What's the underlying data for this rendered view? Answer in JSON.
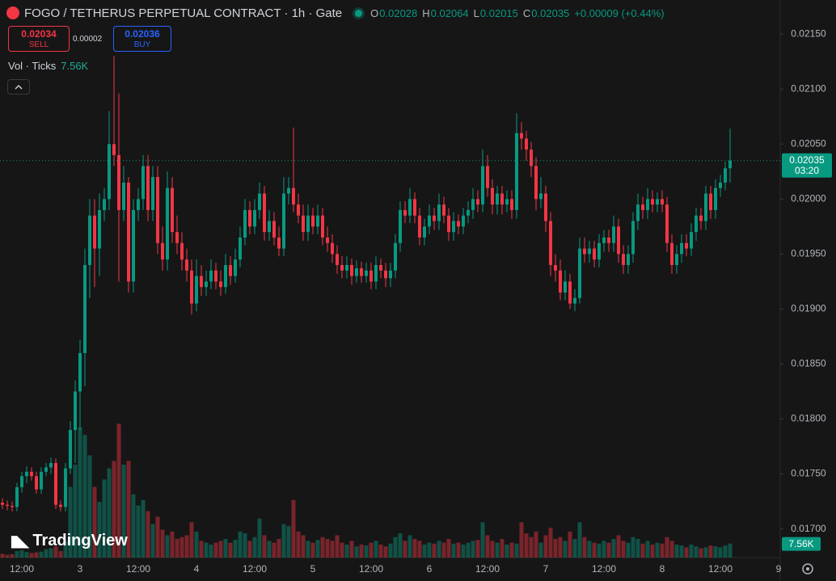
{
  "chart_data": {
    "type": "candlestick",
    "title": "FOGO / TETHERUS PERPETUAL CONTRACT · 1h · Gate",
    "ohlc_labels": [
      "O",
      "H",
      "L",
      "C"
    ],
    "change": "+0.00009 (+0.44%)",
    "countdown": "03:20",
    "up_color": "#089981",
    "down_color": "#f23645",
    "grid": false,
    "categories": [
      null,
      null,
      null,
      null,
      "12:00",
      null,
      null,
      null,
      null,
      null,
      null,
      null,
      null,
      null,
      null,
      null,
      "3",
      null,
      null,
      null,
      null,
      null,
      null,
      null,
      null,
      null,
      null,
      null,
      "12:00",
      null,
      null,
      null,
      null,
      null,
      null,
      null,
      null,
      null,
      null,
      null,
      "4",
      null,
      null,
      null,
      null,
      null,
      null,
      null,
      null,
      null,
      null,
      null,
      "12:00",
      null,
      null,
      null,
      null,
      null,
      null,
      null,
      null,
      null,
      null,
      null,
      "5",
      null,
      null,
      null,
      null,
      null,
      null,
      null,
      null,
      null,
      null,
      null,
      "12:00",
      null,
      null,
      null,
      null,
      null,
      null,
      null,
      null,
      null,
      null,
      null,
      "6",
      null,
      null,
      null,
      null,
      null,
      null,
      null,
      null,
      null,
      null,
      null,
      "12:00",
      null,
      null,
      null,
      null,
      null,
      null,
      null,
      null,
      null,
      null,
      null,
      "7",
      null,
      null,
      null,
      null,
      null,
      null,
      null,
      null,
      null,
      null,
      null,
      "12:00",
      null,
      null,
      null,
      null,
      null,
      null,
      null,
      null,
      null,
      null,
      null,
      "8",
      null,
      null,
      null,
      null,
      null,
      null,
      null,
      null,
      null,
      null,
      null,
      "12:00",
      null,
      null,
      null,
      null,
      null,
      null,
      null,
      null,
      null,
      null,
      null,
      "9"
    ],
    "series": [
      {
        "name": "FOGO / TETHERUS PERPETUAL CONTRACT",
        "open": [
          0.01724,
          0.01722,
          0.01721,
          0.0172,
          0.01738,
          0.01748,
          0.01752,
          0.01748,
          0.01736,
          0.01752,
          0.01756,
          0.0176,
          0.01722,
          0.0172,
          0.01755,
          0.0179,
          0.01825,
          0.0186,
          0.0194,
          0.01985,
          0.01955,
          0.0199,
          0.02,
          0.0205,
          0.0204,
          0.0199,
          0.02015,
          0.01925,
          0.0199,
          0.02,
          0.0203,
          0.0199,
          0.0202,
          0.0196,
          0.01945,
          0.0201,
          0.0197,
          0.0196,
          0.01945,
          0.01935,
          0.01905,
          0.0193,
          0.0192,
          0.01925,
          0.01935,
          0.01925,
          0.0192,
          0.0194,
          0.0193,
          0.01945,
          0.01965,
          0.0199,
          0.01975,
          0.0199,
          0.02005,
          0.0197,
          0.0198,
          0.01965,
          0.01955,
          0.02005,
          0.0201,
          0.01995,
          0.01985,
          0.0197,
          0.01985,
          0.01975,
          0.01985,
          0.01965,
          0.0196,
          0.0195,
          0.0194,
          0.01935,
          0.0194,
          0.0193,
          0.01937,
          0.0193,
          0.01935,
          0.01925,
          0.0194,
          0.01935,
          0.01928,
          0.01935,
          0.0196,
          0.0199,
          0.01985,
          0.02,
          0.01985,
          0.01965,
          0.01975,
          0.01985,
          0.0198,
          0.01995,
          0.01985,
          0.0197,
          0.0198,
          0.01975,
          0.01985,
          0.0199,
          0.02,
          0.01995,
          0.0203,
          0.0201,
          0.01995,
          0.02005,
          0.01995,
          0.02,
          0.0199,
          0.0206,
          0.02055,
          0.02045,
          0.0203,
          0.02,
          0.02005,
          0.0198,
          0.0194,
          0.01935,
          0.01915,
          0.01925,
          0.01905,
          0.0191,
          0.01955,
          0.0195,
          0.01955,
          0.01945,
          0.0196,
          0.01965,
          0.0196,
          0.01975,
          0.0195,
          0.0194,
          0.0195,
          0.0198,
          0.01995,
          0.0199,
          0.02,
          0.01995,
          0.02,
          0.01995,
          0.0196,
          0.0194,
          0.0195,
          0.0196,
          0.01955,
          0.0197,
          0.01985,
          0.0198,
          0.02005,
          0.0199,
          0.0201,
          0.02015,
          0.02028,
          null,
          null,
          null,
          null,
          null,
          null,
          null,
          null,
          null,
          null
        ],
        "high": [
          0.01728,
          0.01726,
          0.01725,
          0.01742,
          0.01752,
          0.01757,
          0.01756,
          0.01752,
          0.01756,
          0.0176,
          0.01765,
          0.01764,
          0.01726,
          0.0176,
          0.01798,
          0.01835,
          0.01872,
          0.01955,
          0.02,
          0.02,
          0.02005,
          0.0201,
          0.0208,
          0.0213,
          0.02096,
          0.0203,
          0.0202,
          0.02,
          0.0201,
          0.0204,
          0.0204,
          0.0203,
          0.0203,
          0.01975,
          0.02025,
          0.0202,
          0.01985,
          0.0197,
          0.01955,
          0.01945,
          0.01945,
          0.0194,
          0.01935,
          0.01945,
          0.01942,
          0.01935,
          0.0195,
          0.01948,
          0.01955,
          0.01975,
          0.02,
          0.01998,
          0.02,
          0.02015,
          0.02012,
          0.0199,
          0.01988,
          0.01975,
          0.0202,
          0.0202,
          0.02065,
          0.02005,
          0.01995,
          0.01995,
          0.01992,
          0.01995,
          0.01992,
          0.01975,
          0.01968,
          0.01958,
          0.01948,
          0.01948,
          0.01946,
          0.01944,
          0.01943,
          0.01942,
          0.01942,
          0.01948,
          0.01946,
          0.01942,
          0.01942,
          0.01968,
          0.01998,
          0.01998,
          0.0201,
          0.02006,
          0.01992,
          0.01982,
          0.01995,
          0.01992,
          0.02005,
          0.02002,
          0.01992,
          0.01988,
          0.01986,
          0.01992,
          0.01998,
          0.0201,
          0.02008,
          0.02045,
          0.0204,
          0.02018,
          0.02012,
          0.02012,
          0.02008,
          0.02008,
          0.02078,
          0.0207,
          0.02062,
          0.02052,
          0.02038,
          0.0202,
          0.02012,
          0.01988,
          0.0195,
          0.01945,
          0.01935,
          0.01932,
          0.01918,
          0.01965,
          0.01965,
          0.01962,
          0.01962,
          0.01968,
          0.01972,
          0.01972,
          0.01985,
          0.01982,
          0.01958,
          0.01958,
          0.01988,
          0.02005,
          0.02002,
          0.0201,
          0.02008,
          0.02006,
          0.02008,
          0.02002,
          0.01968,
          0.01958,
          0.01968,
          0.01968,
          0.01978,
          0.01992,
          0.01992,
          0.02012,
          0.02012,
          0.02018,
          0.02022,
          0.02034,
          0.02064,
          null,
          null,
          null,
          null,
          null,
          null,
          null,
          null,
          null,
          null
        ],
        "low": [
          0.01718,
          0.01717,
          0.01716,
          0.01716,
          0.01733,
          0.01742,
          0.01744,
          0.01732,
          0.01732,
          0.01748,
          0.0175,
          0.01718,
          0.01716,
          0.01716,
          0.0175,
          0.0176,
          0.0179,
          0.0183,
          0.0191,
          0.0192,
          0.0193,
          0.0198,
          0.0199,
          0.0203,
          0.01925,
          0.0198,
          0.01915,
          0.01915,
          0.0198,
          0.0199,
          0.0198,
          0.0198,
          0.0195,
          0.01935,
          0.01935,
          0.0196,
          0.0195,
          0.01935,
          0.01925,
          0.01895,
          0.01898,
          0.01912,
          0.01912,
          0.01918,
          0.01918,
          0.01912,
          0.01914,
          0.01922,
          0.01924,
          0.01938,
          0.01958,
          0.01968,
          0.01968,
          0.01982,
          0.01962,
          0.01962,
          0.01958,
          0.01948,
          0.01948,
          0.01995,
          0.01988,
          0.01978,
          0.01962,
          0.01962,
          0.01968,
          0.01968,
          0.01958,
          0.01952,
          0.01942,
          0.01932,
          0.01928,
          0.01928,
          0.01922,
          0.01924,
          0.01924,
          0.01924,
          0.01918,
          0.01918,
          0.01928,
          0.0192,
          0.0192,
          0.01928,
          0.01952,
          0.01978,
          0.01978,
          0.01978,
          0.01958,
          0.01958,
          0.01968,
          0.01972,
          0.01972,
          0.01978,
          0.01962,
          0.01962,
          0.01968,
          0.01968,
          0.01978,
          0.01982,
          0.01988,
          0.01988,
          0.02002,
          0.01986,
          0.01986,
          0.01986,
          0.01988,
          0.01982,
          0.01982,
          0.02045,
          0.02035,
          0.0202,
          0.0199,
          0.01992,
          0.0197,
          0.0193,
          0.01925,
          0.01908,
          0.01908,
          0.019,
          0.01898,
          0.01905,
          0.01942,
          0.01942,
          0.01938,
          0.01938,
          0.01952,
          0.01952,
          0.01952,
          0.01942,
          0.01932,
          0.01932,
          0.01942,
          0.01972,
          0.01982,
          0.01982,
          0.01988,
          0.01988,
          0.01988,
          0.01952,
          0.01932,
          0.01932,
          0.01942,
          0.01948,
          0.01948,
          0.01962,
          0.01972,
          0.01972,
          0.01982,
          0.01982,
          0.02002,
          0.02008,
          0.02015,
          null,
          null,
          null,
          null,
          null,
          null,
          null,
          null,
          null,
          null
        ],
        "close": [
          0.01722,
          0.01721,
          0.0172,
          0.01738,
          0.01748,
          0.01752,
          0.01748,
          0.01736,
          0.01752,
          0.01756,
          0.0176,
          0.01722,
          0.0172,
          0.01755,
          0.0179,
          0.01825,
          0.0186,
          0.0194,
          0.01985,
          0.01955,
          0.0199,
          0.02,
          0.0205,
          0.0204,
          0.0199,
          0.02015,
          0.01925,
          0.0199,
          0.02,
          0.0203,
          0.0199,
          0.0202,
          0.0196,
          0.01945,
          0.0201,
          0.0197,
          0.0196,
          0.01945,
          0.01935,
          0.01905,
          0.0193,
          0.0192,
          0.01925,
          0.01935,
          0.01925,
          0.0192,
          0.0194,
          0.0193,
          0.01945,
          0.01965,
          0.0199,
          0.01975,
          0.0199,
          0.02005,
          0.0197,
          0.0198,
          0.01965,
          0.01955,
          0.02005,
          0.0201,
          0.01995,
          0.01985,
          0.0197,
          0.01985,
          0.01975,
          0.01985,
          0.01965,
          0.0196,
          0.0195,
          0.0194,
          0.01935,
          0.0194,
          0.0193,
          0.01937,
          0.0193,
          0.01935,
          0.01925,
          0.0194,
          0.01935,
          0.01928,
          0.01935,
          0.0196,
          0.0199,
          0.01985,
          0.02,
          0.01985,
          0.01965,
          0.01975,
          0.01985,
          0.0198,
          0.01995,
          0.01985,
          0.0197,
          0.0198,
          0.01975,
          0.01985,
          0.0199,
          0.02,
          0.01995,
          0.0203,
          0.0201,
          0.01995,
          0.02005,
          0.01995,
          0.02,
          0.0199,
          0.0206,
          0.02055,
          0.02045,
          0.0203,
          0.02,
          0.02005,
          0.0198,
          0.0194,
          0.01935,
          0.01915,
          0.01925,
          0.01905,
          0.0191,
          0.01955,
          0.0195,
          0.01955,
          0.01945,
          0.0196,
          0.01965,
          0.0196,
          0.01975,
          0.0195,
          0.0194,
          0.0195,
          0.0198,
          0.01995,
          0.0199,
          0.02,
          0.01995,
          0.02,
          0.01995,
          0.0196,
          0.0194,
          0.0195,
          0.0196,
          0.01955,
          0.0197,
          0.01985,
          0.0198,
          0.02005,
          0.0199,
          0.0201,
          0.02015,
          0.02028,
          0.02035,
          null,
          null,
          null,
          null,
          null,
          null,
          null,
          null,
          null,
          null
        ]
      },
      {
        "name": "Vol · Ticks",
        "axis": "y2",
        "current_label": "7.56K",
        "values": [
          2000,
          1500,
          1800,
          3500,
          4000,
          3000,
          2500,
          2800,
          3200,
          4500,
          5000,
          6000,
          3500,
          9000,
          38000,
          50000,
          70000,
          66000,
          55000,
          38000,
          30000,
          42000,
          48000,
          52000,
          72000,
          50000,
          52000,
          34000,
          28000,
          31000,
          25000,
          18000,
          22000,
          15000,
          12000,
          14000,
          10000,
          11000,
          12000,
          19000,
          14000,
          9000,
          8000,
          7000,
          8000,
          9000,
          10000,
          8000,
          9500,
          14000,
          13000,
          9000,
          11000,
          21000,
          12000,
          9000,
          8000,
          10000,
          18000,
          17000,
          31000,
          14000,
          12000,
          9000,
          8000,
          9500,
          11000,
          10000,
          9000,
          12000,
          8000,
          7000,
          9000,
          6000,
          7000,
          6500,
          8000,
          9000,
          7000,
          6000,
          7500,
          11000,
          13000,
          9000,
          12000,
          10000,
          9000,
          7000,
          8000,
          7500,
          9000,
          8000,
          10000,
          7500,
          8000,
          7000,
          8000,
          9000,
          9500,
          19000,
          12000,
          9000,
          8000,
          10000,
          7000,
          8000,
          7500,
          19000,
          13000,
          11000,
          14000,
          8000,
          12000,
          16000,
          10000,
          11000,
          9000,
          14000,
          10000,
          19000,
          11000,
          9000,
          8000,
          7500,
          9000,
          8000,
          10000,
          12000,
          9000,
          8000,
          11000,
          10000,
          7500,
          9000,
          7000,
          8000,
          7500,
          11000,
          9000,
          7000,
          6500,
          5500,
          7000,
          6000,
          5000,
          5500,
          6500,
          6000,
          5500,
          6500,
          7560,
          null,
          null,
          null,
          null,
          null,
          null,
          null,
          null,
          null,
          null
        ]
      }
    ],
    "ylim": [
      0.01674,
      0.02181
    ],
    "yticks": [
      {
        "value": 0.0215,
        "label": "0.02150"
      },
      {
        "value": 0.021,
        "label": "0.02100"
      },
      {
        "value": 0.0205,
        "label": "0.02050"
      },
      {
        "value": 0.02,
        "label": "0.02000"
      },
      {
        "value": 0.0195,
        "label": "0.01950"
      },
      {
        "value": 0.019,
        "label": "0.01900"
      },
      {
        "value": 0.0185,
        "label": "0.01850"
      },
      {
        "value": 0.018,
        "label": "0.01800"
      },
      {
        "value": 0.0175,
        "label": "0.01750"
      },
      {
        "value": 0.017,
        "label": "0.01700"
      }
    ],
    "y2lim": [
      0,
      300000
    ]
  },
  "order_panel": {
    "sell_price": 0.02034,
    "sell_label": "SELL",
    "spread": 2e-05,
    "buy_price": 0.02036,
    "buy_label": "BUY"
  },
  "branding": "TradingView"
}
